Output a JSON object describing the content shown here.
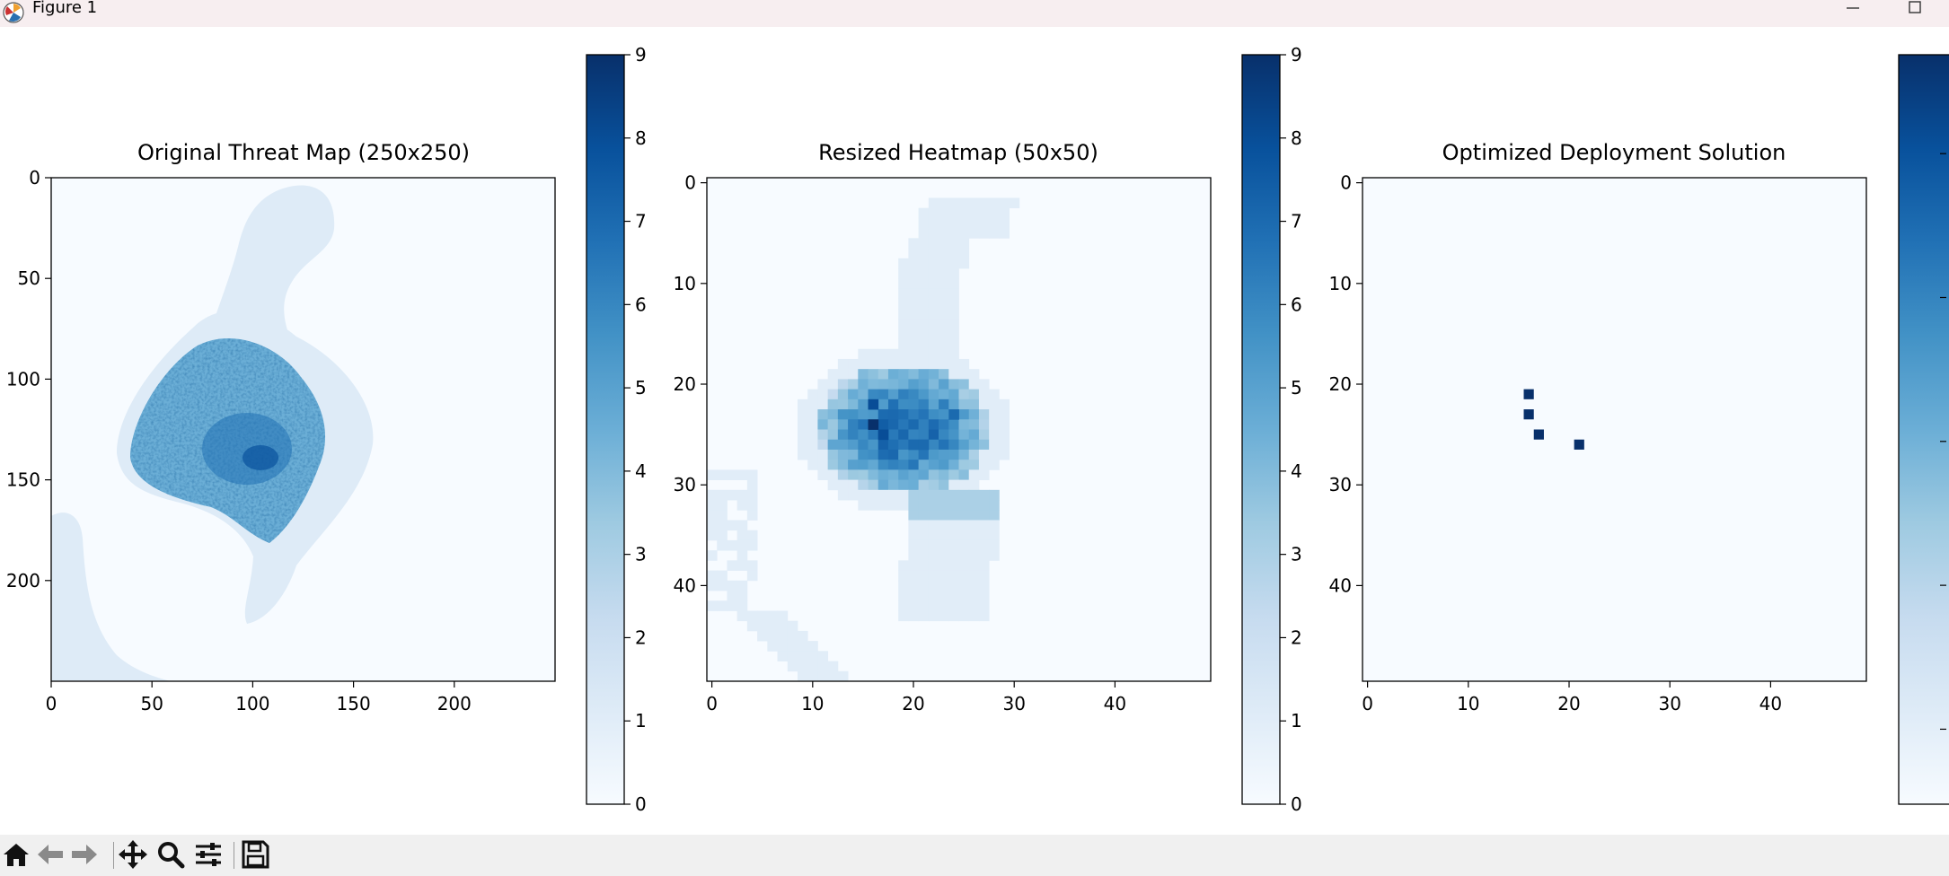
{
  "window": {
    "title": "Figure 1",
    "app_icon": "matplotlib-logo-icon",
    "controls": [
      "minimize-icon",
      "maximize-icon"
    ]
  },
  "toolbar": {
    "buttons": [
      {
        "name": "home-button",
        "icon": "home-icon"
      },
      {
        "name": "back-button",
        "icon": "arrow-left-icon"
      },
      {
        "name": "forward-button",
        "icon": "arrow-right-icon"
      },
      {
        "name": "pan-button",
        "icon": "move-icon"
      },
      {
        "name": "zoom-button",
        "icon": "magnifier-icon"
      },
      {
        "name": "configure-subplots-button",
        "icon": "sliders-icon"
      },
      {
        "name": "save-button",
        "icon": "floppy-disk-icon"
      }
    ]
  },
  "colormap": {
    "name": "Blues",
    "low": "#f7fbff",
    "high": "#08306b"
  },
  "chart_data": [
    {
      "type": "heatmap",
      "title": "Original Threat Map (250x250)",
      "xticks": [
        0,
        50,
        100,
        150,
        200
      ],
      "yticks": [
        0,
        50,
        100,
        150,
        200
      ],
      "xlim": [
        0,
        250
      ],
      "ylim": [
        250,
        0
      ],
      "colorbar": {
        "range": [
          0,
          9
        ],
        "ticks": [
          0,
          1,
          2,
          3,
          4,
          5,
          6,
          7,
          8,
          9
        ]
      },
      "data_description_regions": [
        {
          "region": "upper plume",
          "x": [
            95,
            140
          ],
          "y": [
            5,
            60
          ],
          "value": 1
        },
        {
          "region": "central cluster",
          "x": [
            40,
            165
          ],
          "y": [
            60,
            170
          ],
          "value_range": [
            2,
            8
          ],
          "peak_near": [
            105,
            130
          ]
        },
        {
          "region": "lower tail",
          "x": [
            95,
            150
          ],
          "y": [
            170,
            220
          ],
          "value": 1
        },
        {
          "region": "lower-left arc",
          "x": [
            0,
            60
          ],
          "y": [
            150,
            250
          ],
          "value": 1
        }
      ]
    },
    {
      "type": "heatmap",
      "title": "Resized Heatmap (50x50)",
      "xticks": [
        0,
        10,
        20,
        30,
        40
      ],
      "yticks": [
        0,
        10,
        20,
        30,
        40
      ],
      "xlim": [
        0,
        50
      ],
      "ylim": [
        50,
        0
      ],
      "colorbar": {
        "range": [
          0,
          9
        ],
        "ticks": [
          0,
          1,
          2,
          3,
          4,
          5,
          6,
          7,
          8,
          9
        ]
      },
      "peak_cells": [
        {
          "col": 16,
          "row": 24,
          "value": 9
        },
        {
          "col": 16,
          "row": 22,
          "value": 8
        },
        {
          "col": 17,
          "row": 25,
          "value": 8
        },
        {
          "col": 20,
          "row": 26,
          "value": 7
        },
        {
          "col": 21,
          "row": 26,
          "value": 7
        },
        {
          "col": 24,
          "row": 23,
          "value": 7
        }
      ]
    },
    {
      "type": "heatmap",
      "title": "Optimized Deployment Solution",
      "xticks": [
        0,
        10,
        20,
        30,
        40
      ],
      "yticks": [
        0,
        10,
        20,
        30,
        40
      ],
      "xlim": [
        0,
        50
      ],
      "ylim": [
        50,
        0
      ],
      "deployment_points": [
        {
          "x": 16,
          "y": 21
        },
        {
          "x": 16,
          "y": 23
        },
        {
          "x": 17,
          "y": 25
        },
        {
          "x": 21,
          "y": 26
        }
      ],
      "colorbar": {
        "ticks_labels_visible": false,
        "tick_count": 5
      }
    }
  ]
}
